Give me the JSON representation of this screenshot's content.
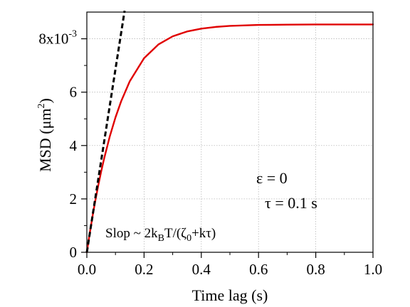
{
  "chart_data": {
    "type": "line",
    "xlabel": "Time lag (s)",
    "ylabel_main": "MSD (μm",
    "ylabel_sup": "2",
    "ylabel_close": ")",
    "xlim": [
      0,
      1.0
    ],
    "ylim": [
      0,
      0.009
    ],
    "grid": true,
    "x_ticks": [
      {
        "value": 0.0,
        "label": "0.0"
      },
      {
        "value": 0.2,
        "label": "0.2"
      },
      {
        "value": 0.4,
        "label": "0.4"
      },
      {
        "value": 0.6,
        "label": "0.6"
      },
      {
        "value": 0.8,
        "label": "0.8"
      },
      {
        "value": 1.0,
        "label": "1.0"
      }
    ],
    "y_ticks": [
      {
        "value": 0.0,
        "label": "0"
      },
      {
        "value": 0.002,
        "label": "2"
      },
      {
        "value": 0.004,
        "label": "4"
      },
      {
        "value": 0.006,
        "label": "6"
      }
    ],
    "y_top_tick": {
      "value": 0.008,
      "base": "8x10",
      "exp": "-3"
    },
    "series": [
      {
        "style": "solid",
        "color": "#e00000",
        "x": [
          0,
          0.01,
          0.02,
          0.03,
          0.04,
          0.05,
          0.06,
          0.08,
          0.1,
          0.12,
          0.15,
          0.2,
          0.25,
          0.3,
          0.35,
          0.4,
          0.45,
          0.5,
          0.6,
          0.7,
          0.8,
          0.9,
          1.0
        ],
        "y": [
          0,
          0.000705,
          0.001355,
          0.001955,
          0.00251,
          0.003022,
          0.003495,
          0.004335,
          0.005051,
          0.00566,
          0.006407,
          0.007272,
          0.007786,
          0.008091,
          0.008272,
          0.00838,
          0.008444,
          0.008482,
          0.008518,
          0.00853,
          0.008535,
          0.008536,
          0.008536
        ]
      },
      {
        "style": "dashed",
        "color": "#000000",
        "x": [
          0,
          0.132
        ],
        "y": [
          0,
          0.00905
        ]
      }
    ],
    "annotations": {
      "epsilon": "ε = 0",
      "tau": "τ = 0.1 s",
      "slope_prefix": "Slop ~ 2k",
      "slope_sub_b": "B",
      "slope_mid": "T/(ζ",
      "slope_sub_0": "0",
      "slope_suffix": "+kτ)"
    }
  }
}
